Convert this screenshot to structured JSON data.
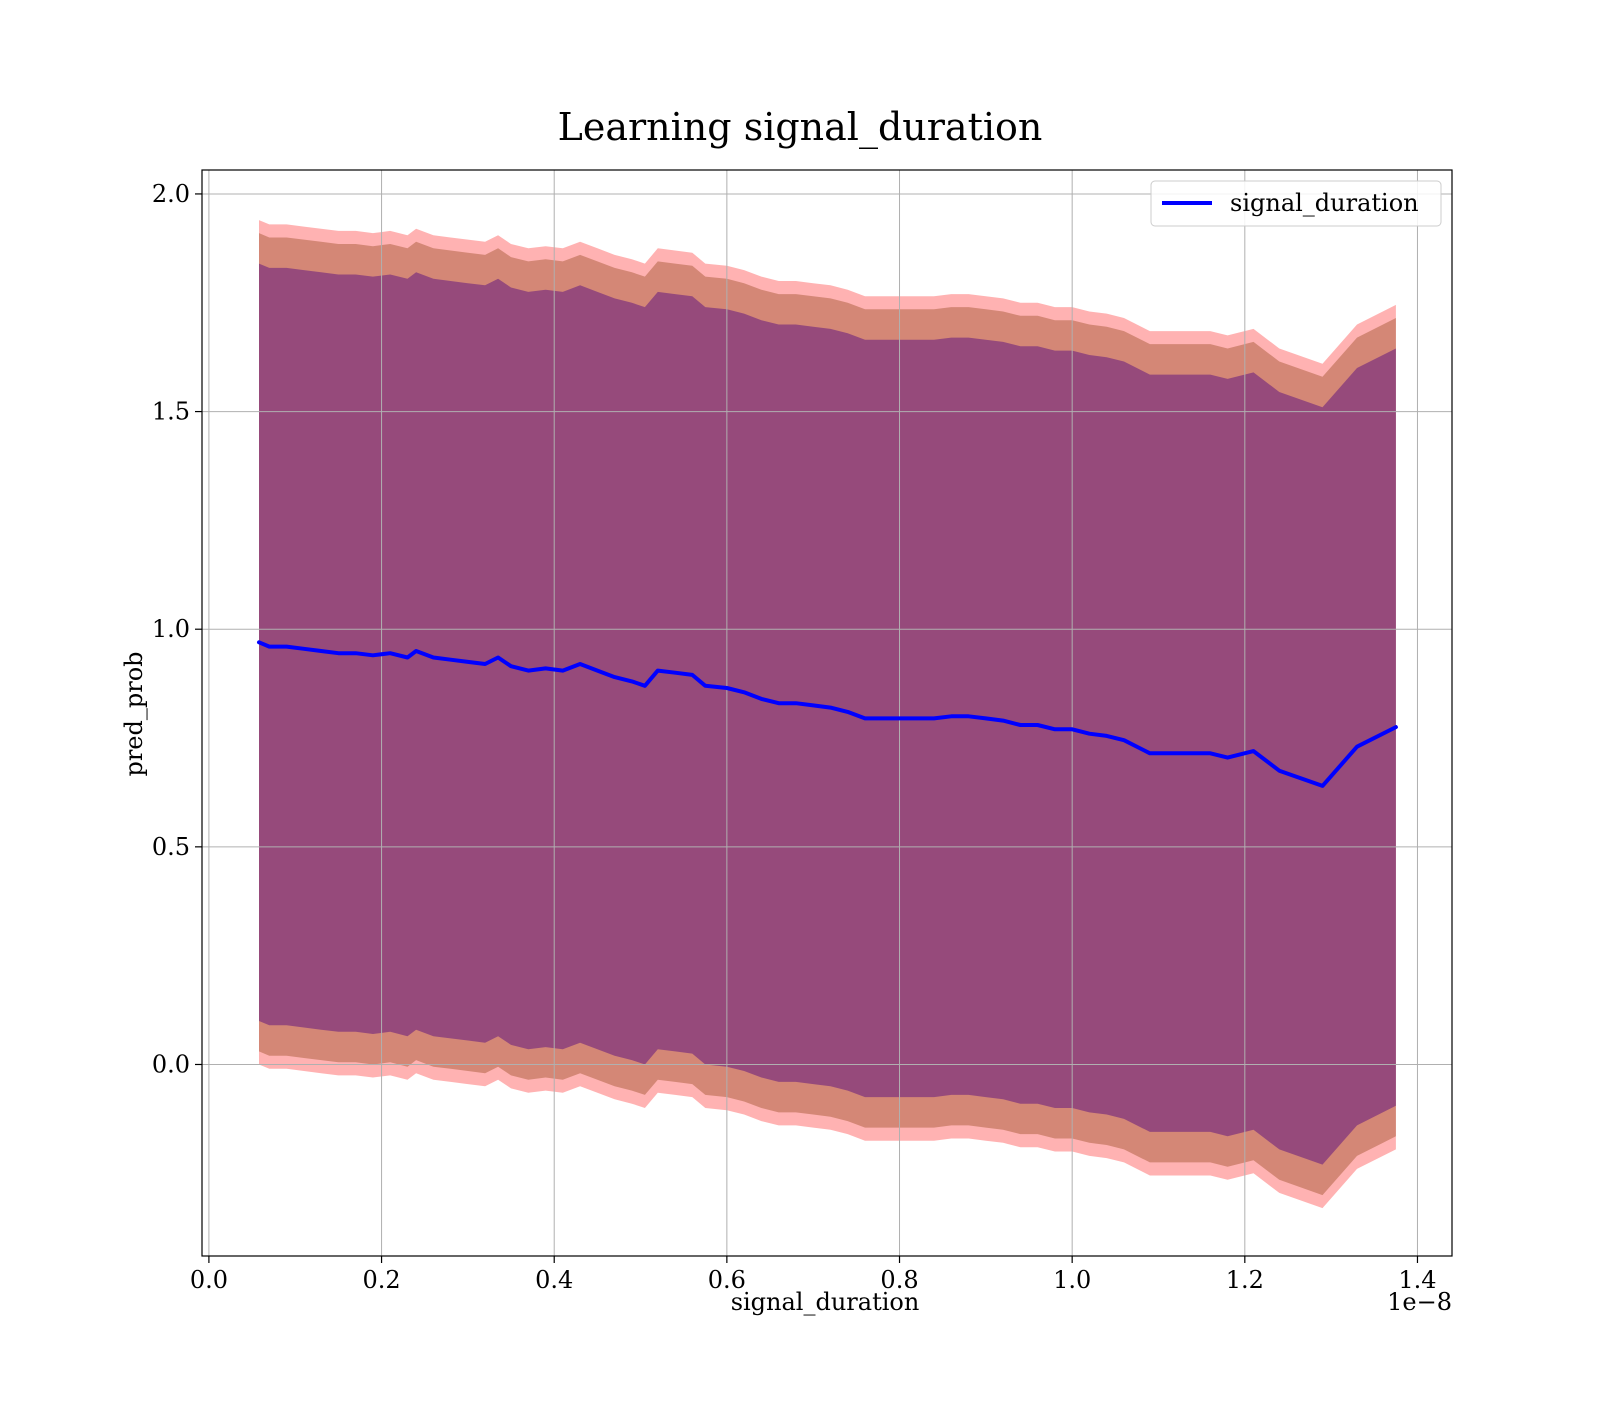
{
  "chart_data": {
    "type": "line",
    "title": "Learning signal_duration",
    "xlabel": "signal_duration",
    "ylabel": "pred_prob",
    "x_offset_label": "1e−8",
    "x_scale_exponent": -8,
    "xlim": [
      -0.008,
      1.44
    ],
    "ylim": [
      -0.44,
      2.055
    ],
    "x_ticks": [
      0.0,
      0.2,
      0.4,
      0.6,
      0.8,
      1.0,
      1.2,
      1.4
    ],
    "x_tick_labels": [
      "0.0",
      "0.2",
      "0.4",
      "0.6",
      "0.8",
      "1.0",
      "1.2",
      "1.4"
    ],
    "y_ticks": [
      0.0,
      0.5,
      1.0,
      1.5,
      2.0
    ],
    "y_tick_labels": [
      "0.0",
      "0.5",
      "1.0",
      "1.5",
      "2.0"
    ],
    "grid": true,
    "legend": {
      "position": "top-right",
      "entries": [
        "signal_duration"
      ]
    },
    "colors": {
      "line": "#0000ff",
      "band_outer": "#ff0000",
      "band_middle": "#a0522d",
      "band_inner": "#4b0082",
      "grid": "#b0b0b0"
    },
    "series": [
      {
        "name": "signal_duration",
        "x": [
          0.058,
          0.07,
          0.09,
          0.11,
          0.13,
          0.15,
          0.17,
          0.19,
          0.21,
          0.23,
          0.24,
          0.26,
          0.28,
          0.3,
          0.32,
          0.335,
          0.35,
          0.37,
          0.39,
          0.41,
          0.43,
          0.45,
          0.47,
          0.49,
          0.505,
          0.52,
          0.54,
          0.56,
          0.575,
          0.6,
          0.62,
          0.64,
          0.66,
          0.68,
          0.7,
          0.72,
          0.74,
          0.76,
          0.78,
          0.8,
          0.82,
          0.84,
          0.86,
          0.88,
          0.9,
          0.92,
          0.94,
          0.96,
          0.98,
          1.0,
          1.02,
          1.04,
          1.06,
          1.09,
          1.12,
          1.16,
          1.18,
          1.21,
          1.24,
          1.29,
          1.33,
          1.375
        ],
        "y": [
          0.97,
          0.96,
          0.96,
          0.955,
          0.95,
          0.945,
          0.945,
          0.94,
          0.945,
          0.935,
          0.95,
          0.935,
          0.93,
          0.925,
          0.92,
          0.935,
          0.915,
          0.905,
          0.91,
          0.905,
          0.92,
          0.905,
          0.89,
          0.88,
          0.87,
          0.905,
          0.9,
          0.895,
          0.87,
          0.865,
          0.855,
          0.84,
          0.83,
          0.83,
          0.825,
          0.82,
          0.81,
          0.795,
          0.795,
          0.795,
          0.795,
          0.795,
          0.8,
          0.8,
          0.795,
          0.79,
          0.78,
          0.78,
          0.77,
          0.77,
          0.76,
          0.755,
          0.745,
          0.715,
          0.715,
          0.715,
          0.705,
          0.72,
          0.675,
          0.64,
          0.73,
          0.775
        ],
        "band_offsets": [
          0.97,
          0.94,
          0.87
        ]
      }
    ]
  }
}
